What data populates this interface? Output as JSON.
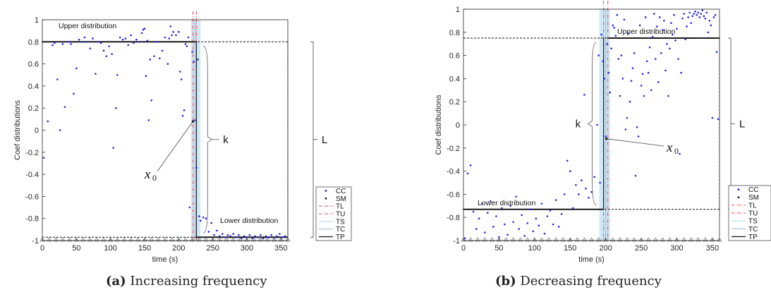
{
  "chart_data": [
    {
      "type": "scatter",
      "panel_letter": "a",
      "caption": "Increasing frequency",
      "xlabel": "time (s)",
      "ylabel": "Coef distributions",
      "xlim": [
        0,
        360
      ],
      "ylim": [
        -1,
        1
      ],
      "xticks": [
        0,
        50,
        100,
        150,
        200,
        250,
        300,
        350
      ],
      "yticks": [
        -1,
        -0.8,
        -0.6,
        -0.4,
        -0.2,
        0,
        0.2,
        0.4,
        0.6,
        0.8,
        1
      ],
      "legend": {
        "position": "bottom-right",
        "entries": [
          "CC",
          "SM",
          "TL",
          "TU",
          "TS",
          "TC",
          "TP"
        ]
      },
      "annotations": {
        "upper": "Upper distribution",
        "lower": "Lower distribution",
        "k": "k",
        "L": "L",
        "x0": "x",
        "x0_sub": "0"
      },
      "upper_level": 0.8,
      "lower_level": -0.97,
      "transition": {
        "TL": 221,
        "TU": 226,
        "TS_start": 218,
        "TS_end": 232,
        "TC": 224,
        "TP": 226
      },
      "x0_point": {
        "x": 221,
        "y": 0.08
      },
      "cc_points": [
        [
          2,
          -0.25
        ],
        [
          8,
          0.08
        ],
        [
          15,
          0.77
        ],
        [
          18,
          0.79
        ],
        [
          22,
          0.46
        ],
        [
          26,
          0.0
        ],
        [
          30,
          0.78
        ],
        [
          33,
          0.21
        ],
        [
          38,
          0.8
        ],
        [
          42,
          0.78
        ],
        [
          46,
          0.33
        ],
        [
          50,
          0.56
        ],
        [
          54,
          0.82
        ],
        [
          58,
          0.8
        ],
        [
          62,
          0.84
        ],
        [
          66,
          0.8
        ],
        [
          70,
          0.74
        ],
        [
          74,
          0.83
        ],
        [
          78,
          0.51
        ],
        [
          82,
          0.8
        ],
        [
          86,
          0.79
        ],
        [
          90,
          0.72
        ],
        [
          94,
          0.67
        ],
        [
          98,
          0.76
        ],
        [
          102,
          0.69
        ],
        [
          104,
          -0.16
        ],
        [
          108,
          0.2
        ],
        [
          110,
          0.5
        ],
        [
          114,
          0.84
        ],
        [
          118,
          0.82
        ],
        [
          122,
          0.83
        ],
        [
          126,
          0.77
        ],
        [
          130,
          0.86
        ],
        [
          134,
          0.79
        ],
        [
          138,
          0.82
        ],
        [
          142,
          0.8
        ],
        [
          146,
          0.88
        ],
        [
          148,
          0.91
        ],
        [
          150,
          0.92
        ],
        [
          152,
          0.49
        ],
        [
          154,
          0.81
        ],
        [
          156,
          0.09
        ],
        [
          158,
          0.64
        ],
        [
          160,
          0.27
        ],
        [
          164,
          0.67
        ],
        [
          168,
          0.8
        ],
        [
          172,
          0.65
        ],
        [
          176,
          0.72
        ],
        [
          180,
          0.84
        ],
        [
          184,
          0.6
        ],
        [
          186,
          0.83
        ],
        [
          188,
          0.94
        ],
        [
          190,
          0.86
        ],
        [
          192,
          0.89
        ],
        [
          196,
          0.86
        ],
        [
          200,
          0.89
        ],
        [
          202,
          0.53
        ],
        [
          204,
          0.46
        ],
        [
          206,
          0.13
        ],
        [
          208,
          0.18
        ],
        [
          210,
          0.78
        ],
        [
          212,
          0.76
        ],
        [
          214,
          0.84
        ],
        [
          216,
          -0.7
        ],
        [
          220,
          0.71
        ],
        [
          222,
          0.62
        ],
        [
          224,
          0.09
        ],
        [
          226,
          -0.34
        ],
        [
          228,
          0.64
        ],
        [
          230,
          -0.78
        ],
        [
          232,
          -0.82
        ],
        [
          236,
          -0.79
        ],
        [
          240,
          -0.8
        ],
        [
          244,
          -0.92
        ],
        [
          248,
          -0.84
        ],
        [
          252,
          -0.95
        ],
        [
          256,
          -0.91
        ],
        [
          260,
          -0.96
        ],
        [
          264,
          -0.94
        ],
        [
          268,
          -0.97
        ],
        [
          272,
          -0.95
        ],
        [
          276,
          -0.96
        ],
        [
          280,
          -0.94
        ],
        [
          284,
          -0.97
        ],
        [
          288,
          -0.95
        ],
        [
          292,
          -0.98
        ],
        [
          296,
          -0.96
        ],
        [
          300,
          -0.97
        ],
        [
          304,
          -0.95
        ],
        [
          308,
          -0.98
        ],
        [
          312,
          -0.96
        ],
        [
          316,
          -0.97
        ],
        [
          320,
          -0.95
        ],
        [
          324,
          -0.98
        ],
        [
          328,
          -0.96
        ],
        [
          332,
          -0.97
        ],
        [
          336,
          -0.95
        ],
        [
          340,
          -0.98
        ],
        [
          344,
          -0.96
        ],
        [
          348,
          -0.94
        ],
        [
          352,
          -0.97
        ],
        [
          356,
          -0.96
        ]
      ],
      "triangle_x": [
        0,
        10,
        20,
        30,
        40,
        50,
        60,
        70,
        80,
        90,
        100,
        110,
        120,
        130,
        140,
        150,
        160,
        170,
        180,
        190,
        200,
        210,
        220,
        230,
        240,
        250,
        260,
        270,
        280,
        290,
        300,
        310,
        320,
        330,
        340,
        350,
        360
      ]
    },
    {
      "type": "scatter",
      "panel_letter": "b",
      "caption": "Decreasing frequency",
      "xlabel": "time (s)",
      "ylabel": "Coef distributions",
      "xlim": [
        0,
        360
      ],
      "ylim": [
        -1,
        1
      ],
      "xticks": [
        0,
        50,
        100,
        150,
        200,
        250,
        300,
        350
      ],
      "yticks": [
        -1,
        -0.8,
        -0.6,
        -0.4,
        -0.2,
        0,
        0.2,
        0.4,
        0.6,
        0.8,
        1
      ],
      "legend": {
        "position": "bottom-right",
        "entries": [
          "CC",
          "SM",
          "TL",
          "TU",
          "TS",
          "TC",
          "TP"
        ]
      },
      "annotations": {
        "upper": "Upper distribution",
        "lower": "Lower distribution",
        "k": "k",
        "L": "L",
        "x0": "x",
        "x0_sub": "0"
      },
      "upper_level": 0.75,
      "lower_level": -0.73,
      "transition": {
        "TL": 197,
        "TU": 203,
        "TS_start": 191,
        "TS_end": 206,
        "TC": 200,
        "TP": 204
      },
      "x0_point": {
        "x": 201,
        "y": -0.12
      },
      "cc_points": [
        [
          2,
          -0.98
        ],
        [
          6,
          -0.42
        ],
        [
          10,
          -0.35
        ],
        [
          14,
          -0.75
        ],
        [
          18,
          -0.9
        ],
        [
          22,
          -0.81
        ],
        [
          26,
          -0.68
        ],
        [
          30,
          -0.93
        ],
        [
          34,
          -0.76
        ],
        [
          38,
          -0.66
        ],
        [
          42,
          -0.88
        ],
        [
          46,
          -0.79
        ],
        [
          50,
          -0.97
        ],
        [
          54,
          -0.72
        ],
        [
          58,
          -0.86
        ],
        [
          62,
          -0.95
        ],
        [
          66,
          -0.7
        ],
        [
          70,
          -0.84
        ],
        [
          74,
          -0.62
        ],
        [
          78,
          -0.9
        ],
        [
          82,
          -0.78
        ],
        [
          86,
          -0.96
        ],
        [
          90,
          -0.85
        ],
        [
          94,
          -0.73
        ],
        [
          98,
          -0.92
        ],
        [
          102,
          -0.81
        ],
        [
          106,
          -0.87
        ],
        [
          110,
          -0.68
        ],
        [
          114,
          -0.94
        ],
        [
          118,
          -0.79
        ],
        [
          122,
          -0.74
        ],
        [
          126,
          -0.86
        ],
        [
          130,
          -0.65
        ],
        [
          134,
          -0.88
        ],
        [
          138,
          -0.77
        ],
        [
          142,
          -0.6
        ],
        [
          146,
          -0.31
        ],
        [
          150,
          -0.4
        ],
        [
          154,
          -0.72
        ],
        [
          158,
          -0.52
        ],
        [
          162,
          -0.6
        ],
        [
          166,
          -0.48
        ],
        [
          170,
          0.26
        ],
        [
          172,
          -0.55
        ],
        [
          176,
          -0.63
        ],
        [
          180,
          -0.58
        ],
        [
          184,
          -0.45
        ],
        [
          188,
          0.0
        ],
        [
          190,
          0.6
        ],
        [
          192,
          -0.5
        ],
        [
          194,
          0.78
        ],
        [
          196,
          0.55
        ],
        [
          198,
          0.4
        ],
        [
          200,
          -0.1
        ],
        [
          202,
          0.7
        ],
        [
          204,
          0.45
        ],
        [
          206,
          0.28
        ],
        [
          208,
          0.66
        ],
        [
          210,
          0.86
        ],
        [
          212,
          0.84
        ],
        [
          214,
          0.77
        ],
        [
          216,
          0.95
        ],
        [
          218,
          0.57
        ],
        [
          220,
          0.25
        ],
        [
          222,
          0.6
        ],
        [
          224,
          0.4
        ],
        [
          226,
          0.91
        ],
        [
          228,
          -0.04
        ],
        [
          230,
          0.06
        ],
        [
          232,
          0.79
        ],
        [
          234,
          0.2
        ],
        [
          236,
          0.38
        ],
        [
          238,
          0.49
        ],
        [
          240,
          0.62
        ],
        [
          242,
          -0.44
        ],
        [
          244,
          -0.02
        ],
        [
          246,
          -0.1
        ],
        [
          248,
          0.86
        ],
        [
          250,
          0.34
        ],
        [
          252,
          0.44
        ],
        [
          254,
          0.25
        ],
        [
          256,
          0.93
        ],
        [
          258,
          0.55
        ],
        [
          260,
          0.45
        ],
        [
          262,
          0.67
        ],
        [
          264,
          0.3
        ],
        [
          266,
          0.76
        ],
        [
          268,
          0.96
        ],
        [
          270,
          0.57
        ],
        [
          272,
          0.85
        ],
        [
          274,
          0.37
        ],
        [
          276,
          0.93
        ],
        [
          278,
          0.62
        ],
        [
          280,
          0.82
        ],
        [
          282,
          0.9
        ],
        [
          284,
          0.47
        ],
        [
          286,
          0.7
        ],
        [
          288,
          0.25
        ],
        [
          290,
          0.66
        ],
        [
          292,
          0.88
        ],
        [
          294,
          0.78
        ],
        [
          296,
          0.95
        ],
        [
          298,
          0.73
        ],
        [
          300,
          0.83
        ],
        [
          302,
          0.57
        ],
        [
          304,
          -0.25
        ],
        [
          306,
          0.45
        ],
        [
          308,
          0.92
        ],
        [
          310,
          0.96
        ],
        [
          312,
          0.74
        ],
        [
          314,
          0.85
        ],
        [
          316,
          0.93
        ],
        [
          318,
          0.97
        ],
        [
          320,
          0.88
        ],
        [
          322,
          0.94
        ],
        [
          324,
          0.96
        ],
        [
          326,
          0.98
        ],
        [
          328,
          0.95
        ],
        [
          330,
          0.97
        ],
        [
          332,
          0.93
        ],
        [
          334,
          0.96
        ],
        [
          336,
          0.99
        ],
        [
          338,
          0.94
        ],
        [
          340,
          0.92
        ],
        [
          342,
          0.97
        ],
        [
          344,
          0.8
        ],
        [
          346,
          0.9
        ],
        [
          348,
          0.86
        ],
        [
          350,
          0.06
        ],
        [
          352,
          0.93
        ],
        [
          354,
          0.95
        ],
        [
          356,
          0.63
        ],
        [
          358,
          0.05
        ]
      ],
      "triangle_x": [
        0,
        10,
        20,
        30,
        40,
        50,
        60,
        70,
        80,
        90,
        100,
        110,
        120,
        130,
        140,
        150,
        160,
        170,
        180,
        190,
        200,
        210,
        220,
        230,
        240,
        250,
        260,
        270,
        280,
        290,
        300,
        310,
        320,
        330,
        340,
        350,
        360
      ]
    }
  ],
  "colors": {
    "cc": "#2323e6",
    "sm": "#111111",
    "tl": "#e8454b",
    "tu": "#e8454b",
    "ts": "#a9d6ee",
    "tc": "#9fb4c8",
    "tp": "#222222",
    "axis": "#262626"
  },
  "captions": [
    {
      "letter": "(a)",
      "text": " Increasing frequency"
    },
    {
      "letter": "(b)",
      "text": " Decreasing frequency"
    }
  ]
}
